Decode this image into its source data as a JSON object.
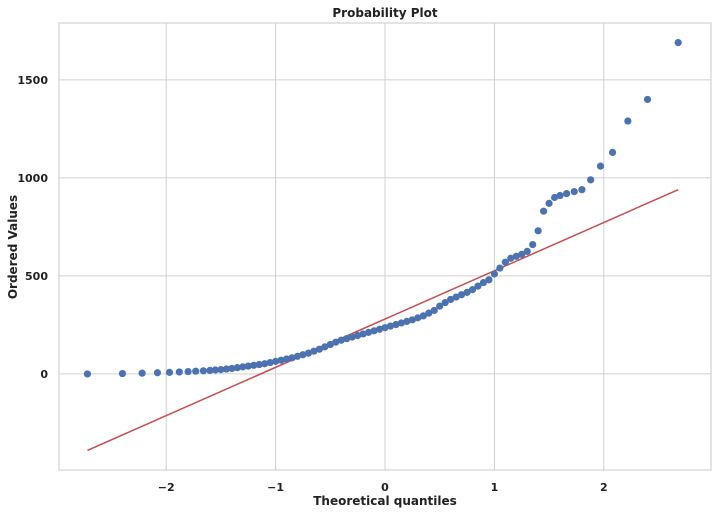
{
  "chart_data": {
    "type": "scatter",
    "title": "Probability Plot",
    "xlabel": "Theoretical quantiles",
    "ylabel": "Ordered Values",
    "xlim": [
      -2.98,
      2.98
    ],
    "ylim": [
      -490,
      1790
    ],
    "grid": true,
    "xticks": [
      {
        "value": -2,
        "label": "−2"
      },
      {
        "value": -1,
        "label": "−1"
      },
      {
        "value": 0,
        "label": "0"
      },
      {
        "value": 1,
        "label": "1"
      },
      {
        "value": 2,
        "label": "2"
      }
    ],
    "yticks": [
      {
        "value": 0,
        "label": "0"
      },
      {
        "value": 500,
        "label": "500"
      },
      {
        "value": 1000,
        "label": "1000"
      },
      {
        "value": 1500,
        "label": "1500"
      }
    ],
    "fit_line": {
      "x": [
        -2.72,
        2.68
      ],
      "y": [
        -390,
        940
      ],
      "color": "#c44e52"
    },
    "point_color": "#4c72b0",
    "series": [
      {
        "x": [
          -2.72,
          -2.4,
          -2.22,
          -2.08,
          -1.97,
          -1.88,
          -1.8,
          -1.73,
          -1.66,
          -1.6,
          -1.55,
          -1.5,
          -1.45,
          -1.4,
          -1.35,
          -1.3,
          -1.25,
          -1.2,
          -1.15,
          -1.1,
          -1.05,
          -1.0,
          -0.95,
          -0.9,
          -0.85,
          -0.8,
          -0.75,
          -0.7,
          -0.65,
          -0.6,
          -0.55,
          -0.5,
          -0.45,
          -0.4,
          -0.35,
          -0.3,
          -0.25,
          -0.2,
          -0.15,
          -0.1,
          -0.05,
          0.0,
          0.05,
          0.1,
          0.15,
          0.2,
          0.25,
          0.3,
          0.35,
          0.4,
          0.45,
          0.5,
          0.55,
          0.6,
          0.65,
          0.7,
          0.75,
          0.8,
          0.85,
          0.9,
          0.95,
          1.0,
          1.05,
          1.1,
          1.15,
          1.2,
          1.25,
          1.3,
          1.35,
          1.4,
          1.45,
          1.5,
          1.55,
          1.6,
          1.66,
          1.73,
          1.8,
          1.88,
          1.97,
          2.08,
          2.22,
          2.4,
          2.68
        ],
        "y": [
          0,
          2,
          4,
          6,
          8,
          10,
          12,
          14,
          16,
          18,
          20,
          22,
          25,
          28,
          32,
          36,
          40,
          44,
          48,
          52,
          58,
          64,
          70,
          76,
          82,
          90,
          98,
          106,
          116,
          126,
          138,
          150,
          162,
          172,
          180,
          188,
          196,
          204,
          212,
          220,
          228,
          236,
          244,
          252,
          260,
          268,
          276,
          286,
          296,
          310,
          324,
          346,
          364,
          380,
          392,
          404,
          416,
          430,
          448,
          466,
          480,
          510,
          540,
          570,
          590,
          600,
          610,
          625,
          660,
          730,
          830,
          870,
          900,
          910,
          920,
          930,
          940,
          990,
          1060,
          1130,
          1290,
          1400,
          1690
        ]
      }
    ]
  }
}
